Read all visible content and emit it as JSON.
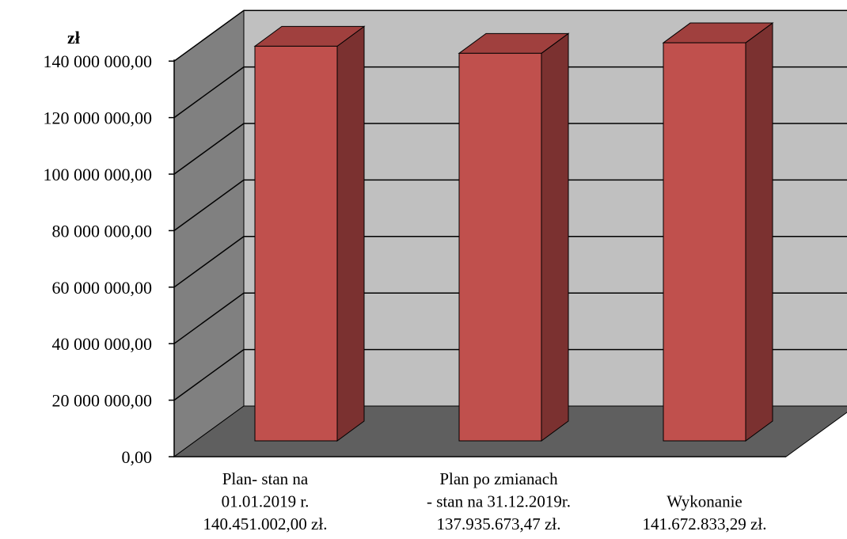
{
  "chart_data": {
    "type": "bar",
    "ylabel": "zł",
    "ylim": [
      0,
      140000000
    ],
    "yticks": [
      "0,00",
      "20 000 000,00",
      "40 000 000,00",
      "60 000 000,00",
      "80 000 000,00",
      "100 000 000,00",
      "120 000 000,00",
      "140 000 000,00"
    ],
    "categories": [
      [
        "Plan- stan na",
        "01.01.2019 r.",
        "140.451.002,00 zł."
      ],
      [
        "Plan po zmianach",
        "- stan na 31.12.2019r.",
        "137.935.673,47 zł."
      ],
      [
        "Wykonanie",
        "141.672.833,29 zł."
      ]
    ],
    "values": [
      140451002.0,
      137935673.47,
      141672833.29
    ],
    "grid": true,
    "style": "3d",
    "colors": {
      "bar_front": "#c0504d",
      "bar_side": "#7b3130",
      "bar_top": "#a0403e",
      "back_wall": "#c0c0c0",
      "side_wall": "#808080",
      "floor": "#5f5f5f"
    }
  }
}
